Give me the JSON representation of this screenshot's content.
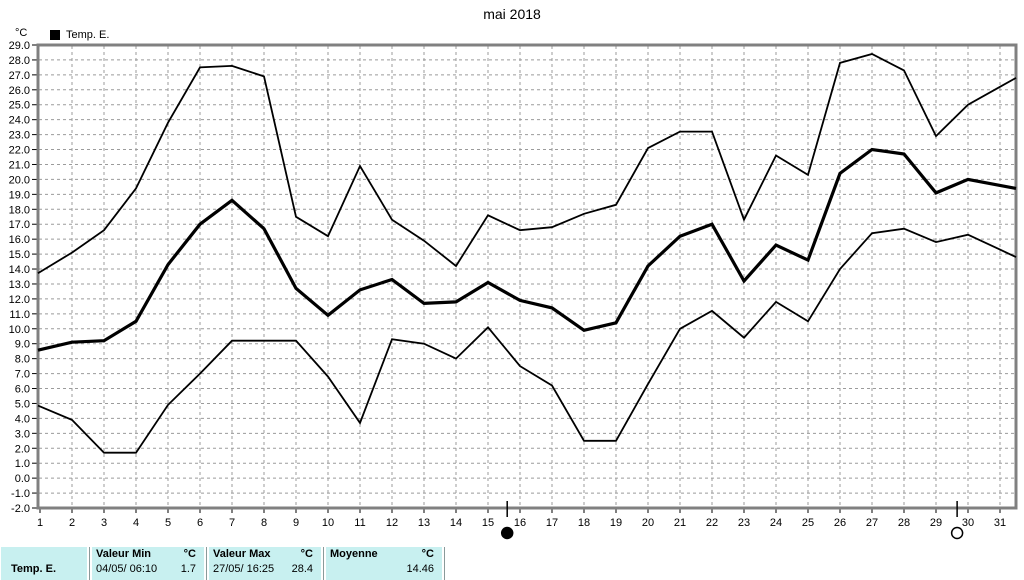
{
  "title": "mai 2018",
  "y_axis_unit": "°C",
  "legend": {
    "label": "Temp. E."
  },
  "colors": {
    "line": "#000000",
    "grid": "#9b9b9b",
    "frame": "#808080",
    "table_bg": "#c8f0f0"
  },
  "chart_data": {
    "type": "line",
    "title": "mai 2018",
    "xlabel": "",
    "ylabel": "°C",
    "x": [
      1,
      2,
      3,
      4,
      5,
      6,
      7,
      8,
      9,
      10,
      11,
      12,
      13,
      14,
      15,
      16,
      17,
      18,
      19,
      20,
      21,
      22,
      23,
      24,
      25,
      26,
      27,
      28,
      29,
      30,
      31
    ],
    "ylim": [
      -2,
      29
    ],
    "y_tick_step": 1,
    "grid": true,
    "legend_position": "top-left",
    "series": [
      {
        "name": "daily-max",
        "style": "thin",
        "values": [
          13.8,
          15.1,
          16.6,
          19.4,
          23.8,
          27.5,
          27.6,
          26.9,
          17.5,
          16.2,
          20.9,
          17.3,
          15.9,
          14.2,
          17.6,
          16.6,
          16.8,
          17.7,
          18.3,
          22.1,
          23.2,
          23.2,
          17.3,
          21.6,
          20.3,
          27.8,
          28.4,
          27.3,
          22.9,
          25.0,
          26.2
        ]
      },
      {
        "name": "daily-mean",
        "style": "thick",
        "values": [
          8.6,
          9.1,
          9.2,
          10.5,
          14.3,
          17.0,
          18.6,
          16.7,
          12.7,
          10.9,
          12.6,
          13.3,
          11.7,
          11.8,
          13.1,
          11.9,
          11.4,
          9.9,
          10.4,
          14.2,
          16.2,
          17.0,
          13.2,
          15.6,
          14.6,
          20.4,
          22.0,
          21.7,
          19.1,
          20.0,
          19.6
        ]
      },
      {
        "name": "daily-min",
        "style": "thin",
        "values": [
          4.8,
          3.9,
          1.7,
          1.7,
          4.9,
          7.0,
          9.2,
          9.2,
          9.2,
          6.8,
          3.7,
          9.3,
          9.0,
          8.0,
          10.1,
          7.5,
          6.2,
          2.5,
          2.5,
          6.3,
          10.0,
          11.2,
          9.4,
          11.8,
          10.5,
          14.0,
          16.4,
          16.7,
          15.8,
          16.3,
          15.3
        ]
      }
    ],
    "moon_markers": [
      {
        "symbol": "new-moon",
        "day": 15.6
      },
      {
        "symbol": "full-moon",
        "day": 29.66
      }
    ]
  },
  "summary_table": {
    "row_label": "Temp. E.",
    "columns": [
      {
        "header": "Valeur Min",
        "unit": "°C",
        "value": "04/05/ 06:10",
        "number": "1.7"
      },
      {
        "header": "Valeur Max",
        "unit": "°C",
        "value": "27/05/ 16:25",
        "number": "28.4"
      },
      {
        "header": "Moyenne",
        "unit": "°C",
        "value": "",
        "number": "14.46"
      }
    ]
  }
}
